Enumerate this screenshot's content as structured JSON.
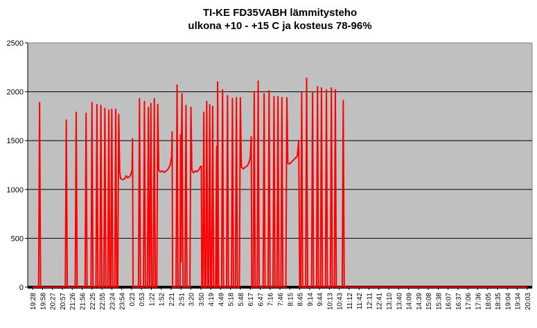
{
  "chart_data": {
    "type": "line",
    "title": "TI-KE FD35VABH lämmitysteho",
    "subtitle": "ulkona +10 - +15 C ja kosteus 78-96%",
    "xlabel": "",
    "ylabel": "",
    "ylim": [
      0,
      2500
    ],
    "yticks": [
      0,
      500,
      1000,
      1500,
      2000,
      2500
    ],
    "grid": true,
    "legend": "none",
    "colors": {
      "plot_bg": "#c0c0c0",
      "series": "#ff0000",
      "baseline": "#000000"
    },
    "xticks": [
      "19:28",
      "19:58",
      "20:27",
      "20:57",
      "21:26",
      "21:56",
      "22:25",
      "22:55",
      "23:24",
      "23:54",
      "0:23",
      "0:53",
      "1:22",
      "1:52",
      "2:21",
      "2:51",
      "3:20",
      "3:50",
      "4:19",
      "4:49",
      "5:18",
      "5:48",
      "6:17",
      "6:47",
      "7:16",
      "7:46",
      "8:15",
      "8:45",
      "9:14",
      "9:44",
      "10:13",
      "10:43",
      "11:12",
      "11:42",
      "12:11",
      "12:41",
      "13:10",
      "13:40",
      "14:09",
      "14:39",
      "15:08",
      "15:38",
      "16:07",
      "16:37",
      "17:06",
      "17:36",
      "18:05",
      "18:35",
      "19:04",
      "19:34",
      "20:03"
    ],
    "series": [
      {
        "values": [
          [
            0,
            0
          ],
          [
            0.6,
            0
          ],
          [
            0.7,
            1890
          ],
          [
            0.8,
            0
          ],
          [
            3.3,
            0
          ],
          [
            3.4,
            1710
          ],
          [
            3.5,
            0
          ],
          [
            4.3,
            0
          ],
          [
            4.4,
            1790
          ],
          [
            4.5,
            0
          ],
          [
            5.3,
            0
          ],
          [
            5.4,
            1780
          ],
          [
            5.5,
            0
          ],
          [
            5.9,
            0
          ],
          [
            6.0,
            1890
          ],
          [
            6.1,
            0
          ],
          [
            6.4,
            0
          ],
          [
            6.5,
            1870
          ],
          [
            6.6,
            0
          ],
          [
            6.8,
            0
          ],
          [
            6.9,
            1860
          ],
          [
            7.0,
            0
          ],
          [
            7.2,
            0
          ],
          [
            7.3,
            1830
          ],
          [
            7.4,
            0
          ],
          [
            7.6,
            0
          ],
          [
            7.7,
            1810
          ],
          [
            7.8,
            0
          ],
          [
            7.9,
            0
          ],
          [
            8.0,
            1820
          ],
          [
            8.1,
            0
          ],
          [
            8.3,
            0
          ],
          [
            8.4,
            1820
          ],
          [
            8.5,
            0
          ],
          [
            8.6,
            0
          ],
          [
            8.7,
            1770
          ],
          [
            8.8,
            1180
          ],
          [
            8.9,
            1110
          ],
          [
            9.1,
            1100
          ],
          [
            9.3,
            1110
          ],
          [
            9.45,
            1140
          ],
          [
            9.6,
            1120
          ],
          [
            9.8,
            1130
          ],
          [
            9.95,
            1160
          ],
          [
            10.05,
            1200
          ],
          [
            10.1,
            1520
          ],
          [
            10.15,
            0
          ],
          [
            10.7,
            0
          ],
          [
            10.8,
            1930
          ],
          [
            10.9,
            0
          ],
          [
            11.2,
            0
          ],
          [
            11.3,
            1900
          ],
          [
            11.4,
            0
          ],
          [
            11.6,
            0
          ],
          [
            11.7,
            1840
          ],
          [
            11.8,
            0
          ],
          [
            11.85,
            0
          ],
          [
            11.95,
            1880
          ],
          [
            12.05,
            0
          ],
          [
            12.2,
            0
          ],
          [
            12.3,
            1930
          ],
          [
            12.4,
            0
          ],
          [
            12.55,
            0
          ],
          [
            12.65,
            1870
          ],
          [
            12.75,
            1200
          ],
          [
            12.9,
            1180
          ],
          [
            13.1,
            1190
          ],
          [
            13.3,
            1175
          ],
          [
            13.5,
            1190
          ],
          [
            13.7,
            1210
          ],
          [
            13.9,
            1250
          ],
          [
            14.05,
            1330
          ],
          [
            14.1,
            1590
          ],
          [
            14.15,
            0
          ],
          [
            14.5,
            0
          ],
          [
            14.6,
            2070
          ],
          [
            14.7,
            0
          ],
          [
            14.9,
            0
          ],
          [
            14.95,
            1560
          ],
          [
            15.0,
            260
          ],
          [
            15.05,
            1560
          ],
          [
            15.1,
            1980
          ],
          [
            15.2,
            0
          ],
          [
            15.4,
            0
          ],
          [
            15.5,
            1860
          ],
          [
            15.6,
            0
          ],
          [
            15.9,
            0
          ],
          [
            16.0,
            1840
          ],
          [
            16.1,
            1200
          ],
          [
            16.25,
            1170
          ],
          [
            16.45,
            1190
          ],
          [
            16.6,
            1180
          ],
          [
            16.8,
            1200
          ],
          [
            16.95,
            1230
          ],
          [
            17.05,
            1240
          ],
          [
            17.1,
            0
          ],
          [
            17.2,
            0
          ],
          [
            17.3,
            1790
          ],
          [
            17.4,
            0
          ],
          [
            17.5,
            0
          ],
          [
            17.6,
            1900
          ],
          [
            17.7,
            0
          ],
          [
            17.8,
            0
          ],
          [
            17.9,
            1870
          ],
          [
            18.0,
            0
          ],
          [
            18.1,
            0
          ],
          [
            18.2,
            1850
          ],
          [
            18.3,
            0
          ],
          [
            18.5,
            0
          ],
          [
            18.6,
            1440
          ],
          [
            18.65,
            0
          ],
          [
            18.7,
            2100
          ],
          [
            18.8,
            0
          ],
          [
            19.1,
            0
          ],
          [
            19.2,
            2020
          ],
          [
            19.3,
            0
          ],
          [
            19.6,
            0
          ],
          [
            19.7,
            1960
          ],
          [
            19.8,
            0
          ],
          [
            20.1,
            0
          ],
          [
            20.2,
            1930
          ],
          [
            20.3,
            0
          ],
          [
            20.5,
            0
          ],
          [
            20.6,
            1940
          ],
          [
            20.7,
            0
          ],
          [
            20.9,
            0
          ],
          [
            21.0,
            1940
          ],
          [
            21.1,
            1230
          ],
          [
            21.3,
            1210
          ],
          [
            21.5,
            1230
          ],
          [
            21.7,
            1240
          ],
          [
            21.85,
            1270
          ],
          [
            22.0,
            1330
          ],
          [
            22.1,
            1540
          ],
          [
            22.15,
            0
          ],
          [
            22.3,
            0
          ],
          [
            22.4,
            2000
          ],
          [
            22.5,
            0
          ],
          [
            22.7,
            0
          ],
          [
            22.8,
            2110
          ],
          [
            22.9,
            0
          ],
          [
            23.3,
            0
          ],
          [
            23.4,
            1980
          ],
          [
            23.5,
            0
          ],
          [
            23.8,
            0
          ],
          [
            23.9,
            2010
          ],
          [
            24.0,
            0
          ],
          [
            24.3,
            0
          ],
          [
            24.4,
            1950
          ],
          [
            24.5,
            0
          ],
          [
            24.7,
            0
          ],
          [
            24.8,
            1950
          ],
          [
            24.9,
            0
          ],
          [
            25.1,
            0
          ],
          [
            25.2,
            1940
          ],
          [
            25.3,
            0
          ],
          [
            25.6,
            0
          ],
          [
            25.7,
            1940
          ],
          [
            25.8,
            1270
          ],
          [
            25.95,
            1260
          ],
          [
            26.15,
            1280
          ],
          [
            26.35,
            1300
          ],
          [
            26.55,
            1320
          ],
          [
            26.75,
            1340
          ],
          [
            26.9,
            1500
          ],
          [
            27.0,
            0
          ],
          [
            27.1,
            0
          ],
          [
            27.2,
            1990
          ],
          [
            27.3,
            0
          ],
          [
            27.6,
            0
          ],
          [
            27.7,
            2140
          ],
          [
            27.8,
            0
          ],
          [
            28.2,
            0
          ],
          [
            28.3,
            2000
          ],
          [
            28.4,
            0
          ],
          [
            28.7,
            0
          ],
          [
            28.8,
            2050
          ],
          [
            28.9,
            0
          ],
          [
            29.1,
            0
          ],
          [
            29.2,
            2040
          ],
          [
            29.3,
            0
          ],
          [
            29.6,
            0
          ],
          [
            29.7,
            2020
          ],
          [
            29.8,
            0
          ],
          [
            30.1,
            0
          ],
          [
            30.2,
            2040
          ],
          [
            30.3,
            0
          ],
          [
            30.5,
            0
          ],
          [
            30.6,
            2020
          ],
          [
            30.7,
            0
          ],
          [
            31.3,
            0
          ],
          [
            31.4,
            1910
          ],
          [
            31.5,
            0
          ],
          [
            50,
            0
          ]
        ]
      }
    ]
  }
}
